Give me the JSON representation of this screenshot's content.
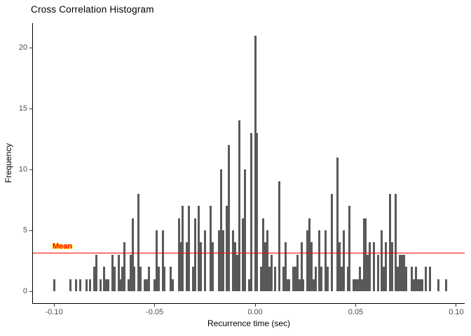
{
  "chart_data": {
    "type": "bar",
    "subtype": "histogram",
    "title": "Cross Correlation Histogram",
    "xlabel": "Recurrence time (sec)",
    "ylabel": "Frequency",
    "bin_width_sec": 0.001,
    "bar_color": "#595959",
    "x_axis": {
      "panel_min": -0.1105,
      "panel_max": 0.1042,
      "ticks": [
        -0.1,
        -0.05,
        0.0,
        0.05,
        0.1
      ],
      "tick_labels": [
        "-0.10",
        "-0.05",
        "0.00",
        "0.05",
        "0.10"
      ]
    },
    "y_axis": {
      "ticks": [
        0,
        5,
        10,
        15,
        20
      ],
      "tick_labels": [
        "0",
        "5",
        "10",
        "15",
        "20"
      ],
      "ylim": [
        0,
        22
      ]
    },
    "legend": "none",
    "grid": "off",
    "mean_line": {
      "label": "Mean",
      "value": 3.1,
      "color": "#FF0000"
    },
    "bars": [
      [
        -0.1,
        1
      ],
      [
        -0.092,
        1
      ],
      [
        -0.089,
        1
      ],
      [
        -0.087,
        1
      ],
      [
        -0.084,
        1
      ],
      [
        -0.082,
        1
      ],
      [
        -0.08,
        2
      ],
      [
        -0.079,
        3
      ],
      [
        -0.077,
        1
      ],
      [
        -0.075,
        2
      ],
      [
        -0.074,
        1
      ],
      [
        -0.073,
        1
      ],
      [
        -0.071,
        3
      ],
      [
        -0.07,
        2
      ],
      [
        -0.068,
        3
      ],
      [
        -0.067,
        1
      ],
      [
        -0.066,
        2
      ],
      [
        -0.065,
        4
      ],
      [
        -0.063,
        1
      ],
      [
        -0.062,
        3
      ],
      [
        -0.061,
        6
      ],
      [
        -0.06,
        2
      ],
      [
        -0.058,
        8
      ],
      [
        -0.057,
        2
      ],
      [
        -0.055,
        1
      ],
      [
        -0.054,
        1
      ],
      [
        -0.053,
        2
      ],
      [
        -0.05,
        1
      ],
      [
        -0.049,
        5
      ],
      [
        -0.048,
        2
      ],
      [
        -0.046,
        5
      ],
      [
        -0.045,
        2
      ],
      [
        -0.042,
        2
      ],
      [
        -0.041,
        1
      ],
      [
        -0.038,
        6
      ],
      [
        -0.037,
        4
      ],
      [
        -0.036,
        7
      ],
      [
        -0.034,
        4
      ],
      [
        -0.033,
        7
      ],
      [
        -0.031,
        2
      ],
      [
        -0.03,
        6
      ],
      [
        -0.028,
        7
      ],
      [
        -0.027,
        4
      ],
      [
        -0.025,
        5
      ],
      [
        -0.022,
        7
      ],
      [
        -0.021,
        4
      ],
      [
        -0.018,
        5
      ],
      [
        -0.017,
        10
      ],
      [
        -0.016,
        5
      ],
      [
        -0.014,
        7
      ],
      [
        -0.013,
        12
      ],
      [
        -0.011,
        5
      ],
      [
        -0.01,
        4
      ],
      [
        -0.009,
        3
      ],
      [
        -0.008,
        14
      ],
      [
        -0.006,
        6
      ],
      [
        -0.005,
        10
      ],
      [
        -0.003,
        1
      ],
      [
        -0.002,
        13
      ],
      [
        0.0,
        21
      ],
      [
        0.001,
        13
      ],
      [
        0.003,
        2
      ],
      [
        0.004,
        6
      ],
      [
        0.005,
        4
      ],
      [
        0.006,
        5
      ],
      [
        0.007,
        2
      ],
      [
        0.008,
        3
      ],
      [
        0.01,
        2
      ],
      [
        0.012,
        9
      ],
      [
        0.014,
        2
      ],
      [
        0.015,
        4
      ],
      [
        0.016,
        1
      ],
      [
        0.017,
        1
      ],
      [
        0.019,
        2
      ],
      [
        0.02,
        2
      ],
      [
        0.021,
        3
      ],
      [
        0.022,
        1
      ],
      [
        0.023,
        4
      ],
      [
        0.024,
        1
      ],
      [
        0.026,
        5
      ],
      [
        0.027,
        6
      ],
      [
        0.028,
        4
      ],
      [
        0.029,
        1
      ],
      [
        0.03,
        2
      ],
      [
        0.032,
        5
      ],
      [
        0.033,
        2
      ],
      [
        0.035,
        5
      ],
      [
        0.036,
        2
      ],
      [
        0.038,
        8
      ],
      [
        0.041,
        11
      ],
      [
        0.042,
        4
      ],
      [
        0.043,
        2
      ],
      [
        0.044,
        5
      ],
      [
        0.046,
        2
      ],
      [
        0.047,
        7
      ],
      [
        0.049,
        1
      ],
      [
        0.05,
        1
      ],
      [
        0.051,
        1
      ],
      [
        0.052,
        2
      ],
      [
        0.053,
        1
      ],
      [
        0.054,
        6
      ],
      [
        0.055,
        6
      ],
      [
        0.056,
        3
      ],
      [
        0.057,
        4
      ],
      [
        0.059,
        4
      ],
      [
        0.061,
        3
      ],
      [
        0.063,
        5
      ],
      [
        0.064,
        2
      ],
      [
        0.065,
        4
      ],
      [
        0.067,
        8
      ],
      [
        0.068,
        4
      ],
      [
        0.07,
        8
      ],
      [
        0.071,
        2
      ],
      [
        0.072,
        3
      ],
      [
        0.073,
        3
      ],
      [
        0.074,
        3
      ],
      [
        0.075,
        2
      ],
      [
        0.078,
        2
      ],
      [
        0.079,
        1
      ],
      [
        0.08,
        2
      ],
      [
        0.081,
        1
      ],
      [
        0.082,
        1
      ],
      [
        0.083,
        1
      ],
      [
        0.085,
        2
      ],
      [
        0.087,
        2
      ],
      [
        0.091,
        1
      ],
      [
        0.095,
        1
      ]
    ]
  }
}
